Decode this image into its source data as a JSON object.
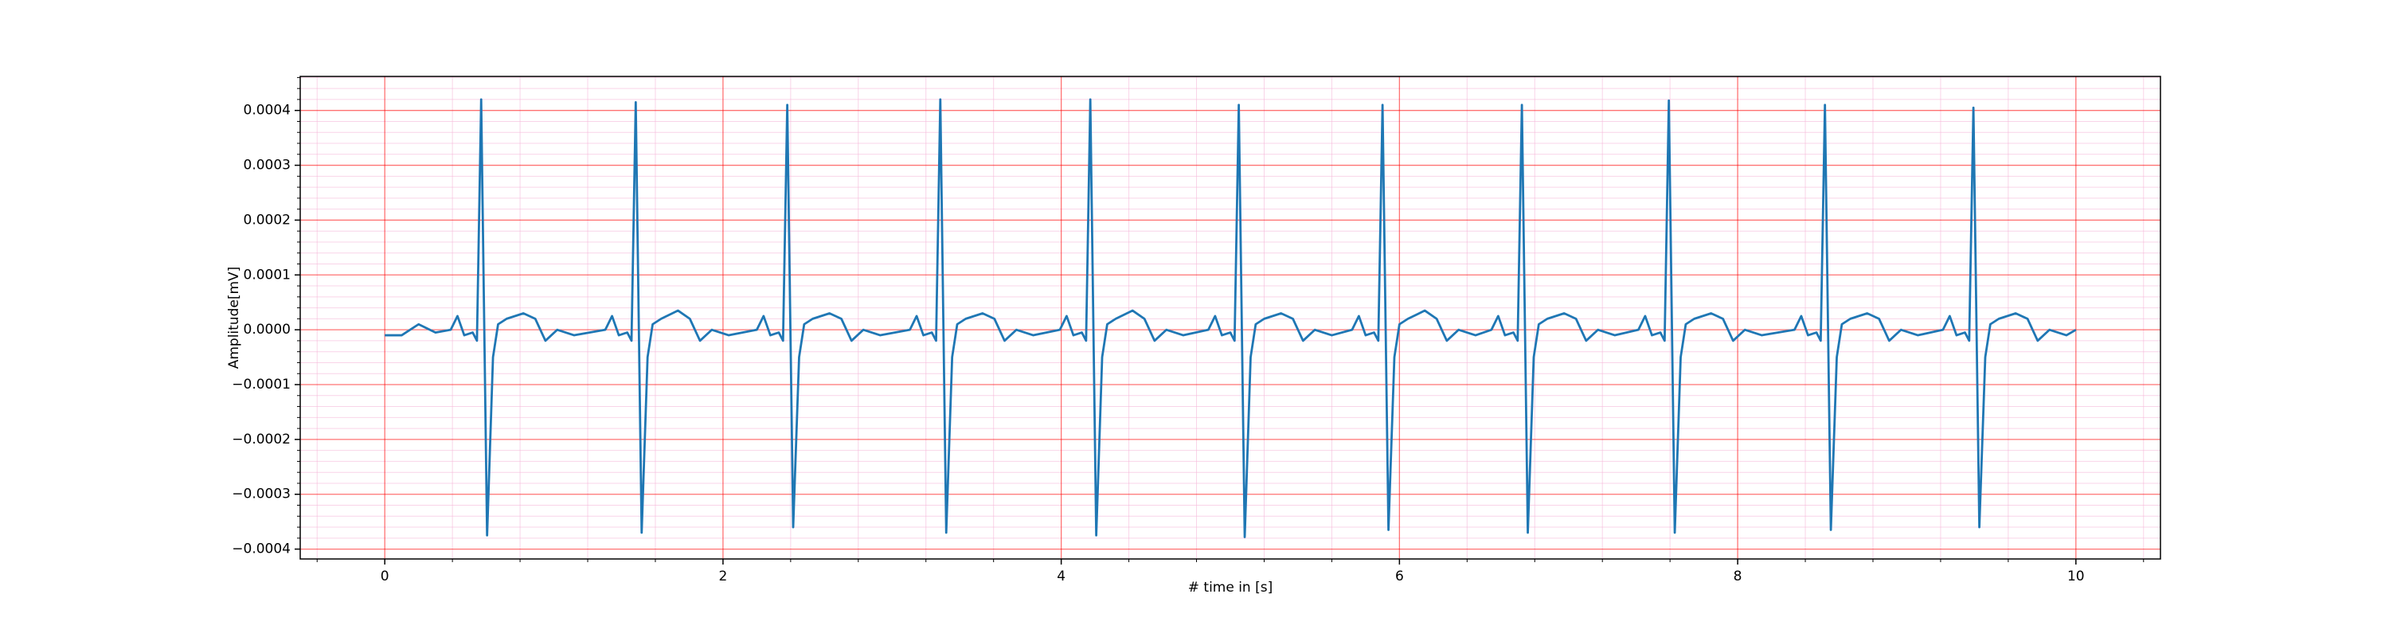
{
  "chart_data": {
    "type": "line",
    "xlabel": "# time in [s]",
    "ylabel": "Amplitude[mV]",
    "color": "#1f77b4",
    "grid": true,
    "minor_grid": true,
    "grid_color": "#ff0000",
    "minor_grid_color": "#f5b8d8",
    "xlim": [
      -0.5,
      10.5
    ],
    "xticks": [
      0,
      2,
      4,
      6,
      8,
      10
    ],
    "ylim": [
      -0.000418,
      0.000462
    ],
    "yticks": [
      {
        "value": -0.0004,
        "label": "−0.0004"
      },
      {
        "value": -0.0003,
        "label": "−0.0003"
      },
      {
        "value": -0.0002,
        "label": "−0.0002"
      },
      {
        "value": -0.0001,
        "label": "−0.0001"
      },
      {
        "value": 0,
        "label": "0.0000"
      },
      {
        "value": 0.0001,
        "label": "0.0001"
      },
      {
        "value": 0.0002,
        "label": "0.0002"
      },
      {
        "value": 0.0003,
        "label": "0.0003"
      },
      {
        "value": 0.0004,
        "label": "0.0004"
      }
    ],
    "x": [
      0,
      0.1,
      0.2,
      0.3,
      0.39,
      0.43,
      0.47,
      0.52,
      0.545,
      0.57,
      0.605,
      0.64,
      0.67,
      0.72,
      0.82,
      0.89,
      0.95,
      1.02,
      1.12,
      1.304,
      1.344,
      1.384,
      1.434,
      1.459,
      1.484,
      1.519,
      1.554,
      1.584,
      1.634,
      1.734,
      1.804,
      1.864,
      1.934,
      2.034,
      2.2,
      2.24,
      2.28,
      2.33,
      2.355,
      2.38,
      2.415,
      2.45,
      2.48,
      2.53,
      2.63,
      2.7,
      2.76,
      2.83,
      2.93,
      3.105,
      3.145,
      3.185,
      3.235,
      3.26,
      3.285,
      3.32,
      3.355,
      3.385,
      3.435,
      3.535,
      3.605,
      3.665,
      3.735,
      3.835,
      3.992,
      4.032,
      4.072,
      4.122,
      4.147,
      4.172,
      4.207,
      4.242,
      4.272,
      4.322,
      4.422,
      4.492,
      4.552,
      4.622,
      4.722,
      4.87,
      4.91,
      4.95,
      5.0,
      5.025,
      5.05,
      5.085,
      5.12,
      5.15,
      5.2,
      5.3,
      5.37,
      5.43,
      5.5,
      5.6,
      5.72,
      5.76,
      5.8,
      5.85,
      5.875,
      5.9,
      5.935,
      5.97,
      6.0,
      6.05,
      6.15,
      6.22,
      6.28,
      6.35,
      6.45,
      6.544,
      6.584,
      6.624,
      6.674,
      6.699,
      6.724,
      6.759,
      6.794,
      6.824,
      6.874,
      6.974,
      7.044,
      7.104,
      7.174,
      7.274,
      7.413,
      7.453,
      7.493,
      7.543,
      7.568,
      7.593,
      7.628,
      7.663,
      7.693,
      7.743,
      7.843,
      7.913,
      7.973,
      8.043,
      8.143,
      8.336,
      8.376,
      8.416,
      8.466,
      8.491,
      8.516,
      8.551,
      8.586,
      8.616,
      8.666,
      8.766,
      8.836,
      8.896,
      8.966,
      9.066,
      9.214,
      9.254,
      9.294,
      9.344,
      9.369,
      9.394,
      9.429,
      9.464,
      9.494,
      9.544,
      9.644,
      9.714,
      9.774,
      9.844,
      9.944,
      10.0
    ],
    "values": [
      -1e-05,
      -1e-05,
      1e-05,
      -5e-06,
      0,
      2.5e-05,
      -1e-05,
      -5e-06,
      -2e-05,
      0.00042,
      -0.000375,
      -5e-05,
      1e-05,
      2e-05,
      3e-05,
      2e-05,
      -2e-05,
      0,
      -1e-05,
      0,
      2.5e-05,
      -1e-05,
      -5e-06,
      -2e-05,
      0.000415,
      -0.00037,
      -5e-05,
      1e-05,
      2e-05,
      3.5e-05,
      2e-05,
      -2e-05,
      0,
      -1e-05,
      0,
      2.5e-05,
      -1e-05,
      -5e-06,
      -2e-05,
      0.00041,
      -0.00036,
      -5e-05,
      1e-05,
      2e-05,
      3e-05,
      2e-05,
      -2e-05,
      0,
      -1e-05,
      0,
      2.5e-05,
      -1e-05,
      -5e-06,
      -2e-05,
      0.00042,
      -0.00037,
      -5e-05,
      1e-05,
      2e-05,
      3e-05,
      2e-05,
      -2e-05,
      0,
      -1e-05,
      0,
      2.5e-05,
      -1e-05,
      -5e-06,
      -2e-05,
      0.00042,
      -0.000375,
      -5e-05,
      1e-05,
      2e-05,
      3.5e-05,
      2e-05,
      -2e-05,
      0,
      -1e-05,
      0,
      2.5e-05,
      -1e-05,
      -5e-06,
      -2e-05,
      0.00041,
      -0.000378,
      -5e-05,
      1e-05,
      2e-05,
      3e-05,
      2e-05,
      -2e-05,
      0,
      -1e-05,
      0,
      2.5e-05,
      -1e-05,
      -5e-06,
      -2e-05,
      0.00041,
      -0.000365,
      -5e-05,
      1e-05,
      2e-05,
      3.5e-05,
      2e-05,
      -2e-05,
      0,
      -1e-05,
      0,
      2.5e-05,
      -1e-05,
      -5e-06,
      -2e-05,
      0.00041,
      -0.00037,
      -5e-05,
      1e-05,
      2e-05,
      3e-05,
      2e-05,
      -2e-05,
      0,
      -1e-05,
      0,
      2.5e-05,
      -1e-05,
      -5e-06,
      -2e-05,
      0.000418,
      -0.00037,
      -5e-05,
      1e-05,
      2e-05,
      3e-05,
      2e-05,
      -2e-05,
      0,
      -1e-05,
      0,
      2.5e-05,
      -1e-05,
      -5e-06,
      -2e-05,
      0.00041,
      -0.000365,
      -5e-05,
      1e-05,
      2e-05,
      3e-05,
      2e-05,
      -2e-05,
      0,
      -1e-05,
      0,
      2.5e-05,
      -1e-05,
      -5e-06,
      -2e-05,
      0.000405,
      -0.00036,
      -5e-05,
      1e-05,
      2e-05,
      3e-05,
      2e-05,
      -2e-05,
      0,
      -1e-05,
      0
    ]
  }
}
